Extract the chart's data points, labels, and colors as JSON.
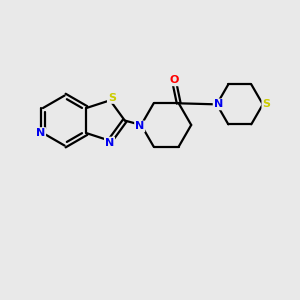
{
  "bg_color": "#e9e9e9",
  "atom_colors": {
    "C": "#000000",
    "N": "#0000ee",
    "S": "#cccc00",
    "O": "#ff0000"
  },
  "bond_color": "#000000",
  "bond_width": 1.6,
  "fig_w": 3.0,
  "fig_h": 3.0,
  "dpi": 100,
  "xlim": [
    0,
    10
  ],
  "ylim": [
    0,
    10
  ]
}
